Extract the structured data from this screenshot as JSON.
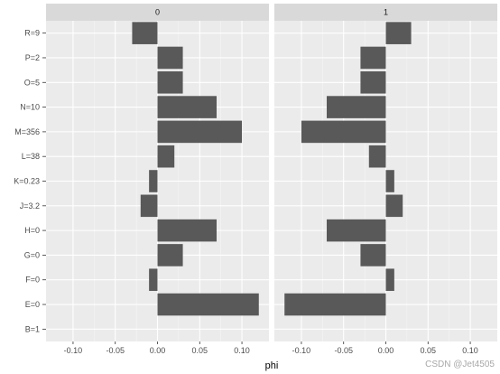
{
  "chart_data": {
    "type": "bar",
    "orientation": "horizontal",
    "categories": [
      "B=1",
      "E=0",
      "F=0",
      "G=0",
      "H=0",
      "J=3.2",
      "K=0.23",
      "L=38",
      "M=356",
      "N=10",
      "O=5",
      "P=2",
      "R=9"
    ],
    "facets": [
      {
        "strip": "0",
        "values": [
          0,
          0.12,
          -0.01,
          0.03,
          0.07,
          -0.02,
          -0.01,
          0.02,
          0.1,
          0.07,
          0.03,
          0.03,
          -0.03
        ]
      },
      {
        "strip": "1",
        "values": [
          0,
          -0.12,
          0.01,
          -0.03,
          -0.07,
          0.02,
          0.01,
          -0.02,
          -0.1,
          -0.07,
          -0.03,
          -0.03,
          0.03
        ]
      }
    ],
    "xticks": [
      -0.1,
      -0.05,
      0.0,
      0.05,
      0.1
    ],
    "xtick_labels": [
      "-0.10",
      "-0.05",
      "0.00",
      "0.05",
      "0.10"
    ],
    "xlim": [
      -0.132,
      0.132
    ],
    "xlabel": "phi",
    "ylabel": "",
    "grid": true,
    "bar_color": "#595959",
    "panel_background": "#ebebeb",
    "strip_background": "#d9d9d9"
  },
  "watermark": "CSDN @Jet4505"
}
